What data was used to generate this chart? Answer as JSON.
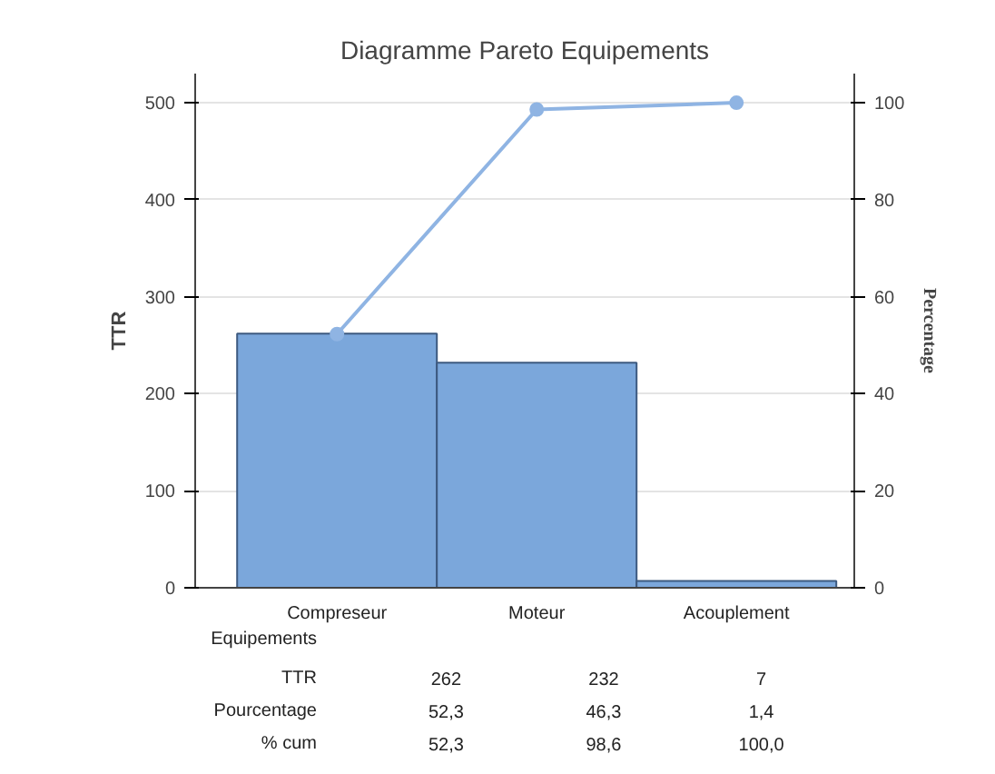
{
  "chart_data": {
    "type": "bar",
    "title": "Diagramme Pareto Equipements",
    "ylabel": "TTR",
    "y2label": "Percentage",
    "xlabel": "Equipements",
    "categories": [
      "Compreseur",
      "Moteur",
      "Acouplement"
    ],
    "series": [
      {
        "color": "#7ba7db",
        "values": [
          262,
          232,
          7
        ]
      },
      {
        "type": "line",
        "axis": "y2",
        "color": "#8fb4e3",
        "marker": "circle",
        "values": [
          52.3,
          98.6,
          100
        ]
      }
    ],
    "annotations": [
      "TTR",
      "262",
      "232",
      "7",
      "Pourcentage",
      "52,3",
      "46,3",
      "1,4",
      "% cum",
      "52,3",
      "98,6",
      "100,0"
    ],
    "ylim": [
      0,
      530
    ],
    "yticks": [
      0,
      100,
      200,
      300,
      400,
      500
    ],
    "y2lim": [
      0,
      106
    ],
    "y2ticks": [
      0,
      20,
      40,
      60,
      80,
      100
    ],
    "grid": "y"
  }
}
